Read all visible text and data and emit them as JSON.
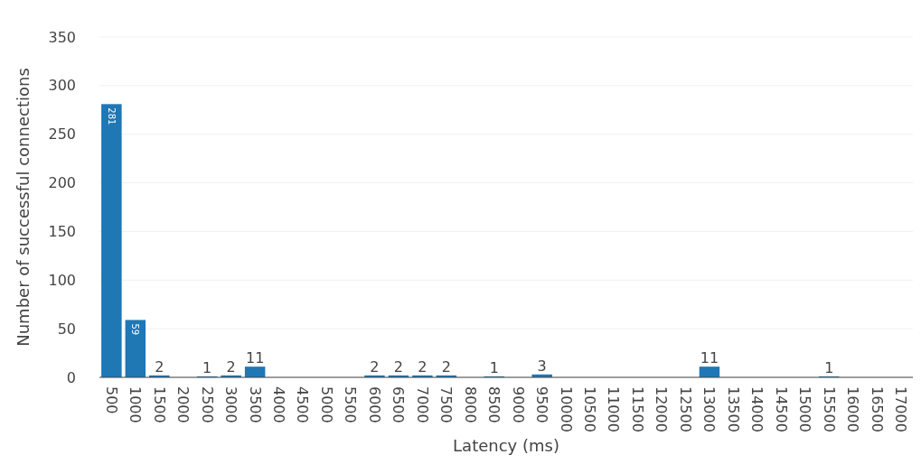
{
  "chart_data": {
    "type": "bar",
    "xlabel": "Latency (ms)",
    "ylabel": "Number of successful connections",
    "categories": [
      "500",
      "1000",
      "1500",
      "2000",
      "2500",
      "3000",
      "3500",
      "4000",
      "4500",
      "5000",
      "5500",
      "6000",
      "6500",
      "7000",
      "7500",
      "8000",
      "8500",
      "9000",
      "9500",
      "10000",
      "10500",
      "11000",
      "11500",
      "12000",
      "12500",
      "13000",
      "13500",
      "14000",
      "14500",
      "15000",
      "15500",
      "16000",
      "16500",
      "17000"
    ],
    "values": [
      281,
      59,
      2,
      null,
      1,
      2,
      11,
      null,
      null,
      null,
      null,
      2,
      2,
      2,
      2,
      null,
      1,
      null,
      3,
      null,
      null,
      null,
      null,
      null,
      null,
      11,
      null,
      null,
      null,
      null,
      1,
      null,
      null,
      null
    ],
    "color": "#1f77b4",
    "ylim": [
      0,
      350
    ],
    "yticks": [
      0,
      50,
      100,
      150,
      200,
      250,
      300,
      350
    ],
    "grid": "y",
    "data_labels": true
  }
}
